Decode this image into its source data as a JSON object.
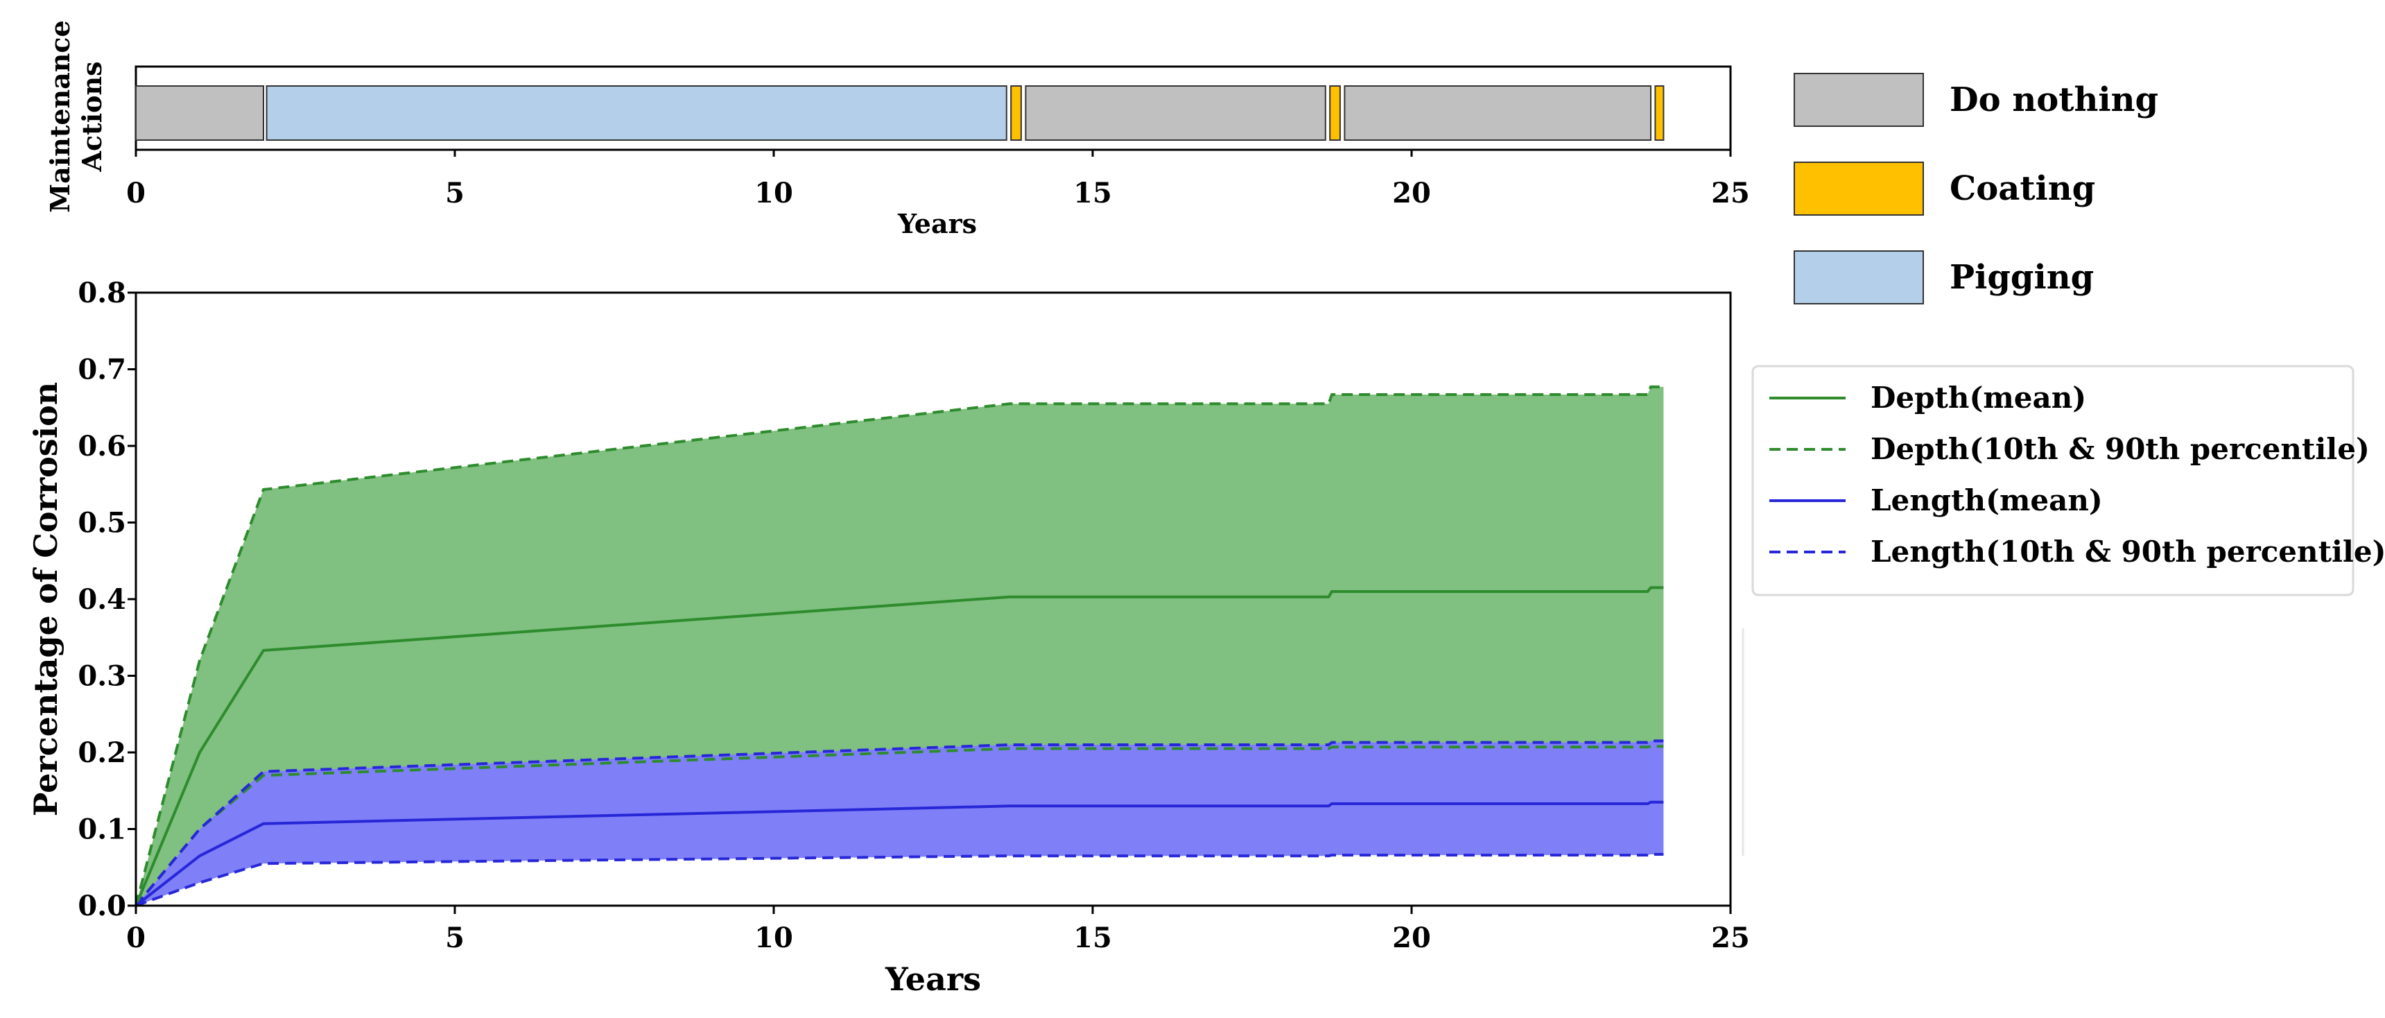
{
  "chart_data": [
    {
      "type": "timeline",
      "ylabel_lines": [
        "Maintenance",
        "Actions"
      ],
      "xlabel": "Years",
      "xlim": [
        0,
        25
      ],
      "xticks": [
        0,
        5,
        10,
        15,
        20,
        25
      ],
      "actions": [
        {
          "action": "Do nothing",
          "start": 0,
          "end": 2.0
        },
        {
          "action": "Pigging",
          "start": 2.05,
          "end": 13.65
        },
        {
          "action": "Coating",
          "start": 13.72,
          "end": 13.88
        },
        {
          "action": "Do nothing",
          "start": 13.95,
          "end": 18.65
        },
        {
          "action": "Coating",
          "start": 18.72,
          "end": 18.88
        },
        {
          "action": "Do nothing",
          "start": 18.95,
          "end": 23.75
        },
        {
          "action": "Coating",
          "start": 23.82,
          "end": 23.95
        }
      ],
      "legend": [
        {
          "label": "Do nothing",
          "color": "#c0c0c0"
        },
        {
          "label": "Coating",
          "color": "#ffc000"
        },
        {
          "label": "Pigging",
          "color": "#b4cfea"
        }
      ]
    },
    {
      "type": "area",
      "ylabel": "Percentage of Corrosion",
      "xlabel": "Years",
      "xlim": [
        0,
        25
      ],
      "ylim": [
        0,
        0.8
      ],
      "xticks": [
        0,
        5,
        10,
        15,
        20,
        25
      ],
      "yticks": [
        0.0,
        0.1,
        0.2,
        0.3,
        0.4,
        0.5,
        0.6,
        0.7,
        0.8
      ],
      "series": [
        {
          "name": "Depth(mean)",
          "style": "solid",
          "color": "#2e8b2e",
          "x": [
            0,
            1,
            2,
            13.7,
            18.7,
            18.75,
            23.7,
            23.75,
            23.95
          ],
          "y": [
            0,
            0.2,
            0.333,
            0.403,
            0.403,
            0.41,
            0.41,
            0.415,
            0.415
          ]
        },
        {
          "name": "Depth(10th & 90th percentile)",
          "style": "dashed",
          "color": "#2e8b2e",
          "fill": "#80c080",
          "x": [
            0,
            1,
            2,
            13.7,
            18.7,
            18.75,
            23.7,
            23.75,
            23.95
          ],
          "lower": [
            0,
            0.1,
            0.17,
            0.205,
            0.205,
            0.207,
            0.207,
            0.208,
            0.208
          ],
          "upper": [
            0,
            0.32,
            0.543,
            0.655,
            0.655,
            0.667,
            0.667,
            0.677,
            0.677
          ]
        },
        {
          "name": "Length(mean)",
          "style": "solid",
          "color": "#2727d8",
          "x": [
            0,
            1,
            2,
            13.7,
            18.7,
            18.75,
            23.7,
            23.75,
            23.95
          ],
          "y": [
            0,
            0.065,
            0.107,
            0.13,
            0.13,
            0.133,
            0.133,
            0.135,
            0.135
          ]
        },
        {
          "name": "Length(10th & 90th percentile)",
          "style": "dashed",
          "color": "#2727d8",
          "fill": "#7f7ff8",
          "x": [
            0,
            1,
            2,
            13.7,
            18.7,
            18.75,
            23.7,
            23.75,
            23.95
          ],
          "lower": [
            0,
            0.03,
            0.055,
            0.065,
            0.065,
            0.066,
            0.066,
            0.067,
            0.067
          ],
          "upper": [
            0,
            0.1,
            0.175,
            0.21,
            0.21,
            0.213,
            0.213,
            0.215,
            0.215
          ]
        }
      ]
    }
  ]
}
